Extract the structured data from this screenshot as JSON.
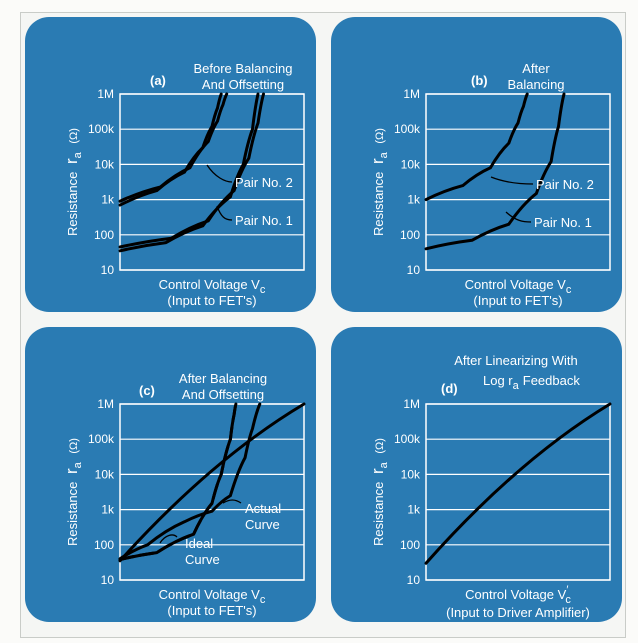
{
  "chart_data": [
    {
      "type": "line",
      "letter": "(a)",
      "title": [
        "Before Balancing",
        "And Offsetting"
      ],
      "ylabel": "Resistance",
      "ylabel_symbol": "r",
      "ylabel_sub": "a",
      "ylabel_unit": "(Ω)",
      "xlabel": [
        "Control Voltage V",
        "(Input to FET's)"
      ],
      "xlabel_sub": "c",
      "yscale": "log",
      "ylim": [
        10,
        1000000
      ],
      "yticks": [
        "10",
        "100",
        "1k",
        "10k",
        "100k",
        "1M"
      ],
      "xlim": [
        0,
        1
      ],
      "grid": true,
      "annotations": [
        "Pair No. 2",
        "Pair No. 1"
      ],
      "series": [
        {
          "x": [
            0.0,
            0.2,
            0.35,
            0.45,
            0.5,
            0.53,
            0.55
          ],
          "y": [
            700,
            1800,
            6000,
            30000,
            120000,
            400000,
            1000000
          ]
        },
        {
          "x": [
            0.0,
            0.22,
            0.38,
            0.48,
            0.53,
            0.56,
            0.58
          ],
          "y": [
            900,
            2300,
            8000,
            45000,
            170000,
            500000,
            1000000
          ]
        },
        {
          "x": [
            0.0,
            0.25,
            0.45,
            0.6,
            0.67,
            0.72,
            0.75
          ],
          "y": [
            35,
            60,
            180,
            1200,
            10000,
            100000,
            1000000
          ]
        },
        {
          "x": [
            0.0,
            0.28,
            0.48,
            0.62,
            0.7,
            0.75,
            0.78
          ],
          "y": [
            45,
            80,
            250,
            1800,
            15000,
            150000,
            1000000
          ]
        }
      ]
    },
    {
      "type": "line",
      "letter": "(b)",
      "title": [
        "After",
        "Balancing"
      ],
      "ylabel": "Resistance",
      "ylabel_symbol": "r",
      "ylabel_sub": "a",
      "ylabel_unit": "(Ω)",
      "xlabel": [
        "Control Voltage V",
        "(Input to FET's)"
      ],
      "xlabel_sub": "c",
      "yscale": "log",
      "ylim": [
        10,
        1000000
      ],
      "yticks": [
        "10",
        "100",
        "1k",
        "10k",
        "100k",
        "1M"
      ],
      "xlim": [
        0,
        1
      ],
      "grid": true,
      "annotations": [
        "Pair No. 2",
        "Pair No. 1"
      ],
      "series": [
        {
          "x": [
            0.0,
            0.2,
            0.35,
            0.45,
            0.5,
            0.53,
            0.55
          ],
          "y": [
            1000,
            2500,
            8000,
            40000,
            150000,
            450000,
            1000000
          ]
        },
        {
          "x": [
            0.0,
            0.25,
            0.45,
            0.6,
            0.68,
            0.72,
            0.75
          ],
          "y": [
            40,
            70,
            200,
            1500,
            12000,
            120000,
            1000000
          ]
        }
      ]
    },
    {
      "type": "line",
      "letter": "(c)",
      "title": [
        "After Balancing",
        "And Offsetting"
      ],
      "ylabel": "Resistance",
      "ylabel_symbol": "r",
      "ylabel_sub": "a",
      "ylabel_unit": "(Ω)",
      "xlabel": [
        "Control Voltage V",
        "(Input to FET's)"
      ],
      "xlabel_sub": "c",
      "yscale": "log",
      "ylim": [
        10,
        1000000
      ],
      "yticks": [
        "10",
        "100",
        "1k",
        "10k",
        "100k",
        "1M"
      ],
      "xlim": [
        0,
        1
      ],
      "grid": true,
      "annotations": [
        "Actual",
        "Curve",
        "Ideal",
        "Curve"
      ],
      "series": [
        {
          "x": [
            0.0,
            1.0
          ],
          "y": [
            35,
            1000000
          ]
        },
        {
          "x": [
            0.0,
            0.2,
            0.4,
            0.5,
            0.55,
            0.6,
            0.62,
            0.63
          ],
          "y": [
            38,
            60,
            200,
            1500,
            10000,
            100000,
            500000,
            1000000
          ]
        },
        {
          "x": [
            0.0,
            0.2,
            0.4,
            0.5,
            0.55,
            0.6,
            0.62,
            0.63
          ],
          "y": [
            38,
            60,
            200,
            1500,
            10000,
            100000,
            500000,
            1000000
          ]
        },
        {
          "x": [
            0.0,
            0.15,
            0.35,
            0.5,
            0.6,
            0.68,
            0.72,
            0.76
          ],
          "y": [
            40,
            100,
            450,
            900,
            2500,
            30000,
            200000,
            1000000
          ]
        }
      ]
    },
    {
      "type": "line",
      "letter": "(d)",
      "title": [
        "After Linearizing With",
        "Log r",
        "Feedback"
      ],
      "title_sub": "a",
      "ylabel": "Resistance",
      "ylabel_symbol": "r",
      "ylabel_sub": "a",
      "ylabel_unit": "(Ω)",
      "xlabel": [
        "Control Voltage V",
        "(Input to Driver Amplifier)"
      ],
      "xlabel_sub": "c",
      "xlabel_prime": "′",
      "yscale": "log",
      "ylim": [
        10,
        1000000
      ],
      "yticks": [
        "10",
        "100",
        "1k",
        "10k",
        "100k",
        "1M"
      ],
      "xlim": [
        0,
        1
      ],
      "grid": true,
      "series": [
        {
          "x": [
            0.0,
            1.0
          ],
          "y": [
            30,
            1000000
          ]
        }
      ]
    }
  ]
}
